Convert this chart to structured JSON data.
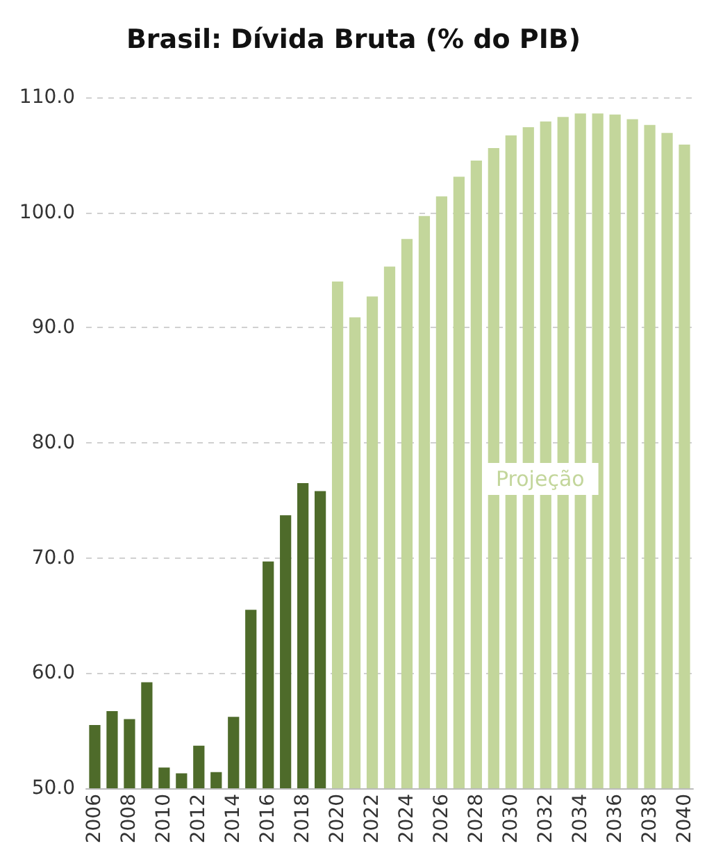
{
  "chart_data": {
    "type": "bar",
    "title": "Brasil: Dívida Bruta (% do PIB)",
    "categories": [
      "2006",
      null,
      "2008",
      null,
      "2010",
      null,
      "2012",
      null,
      "2014",
      null,
      "2016",
      null,
      "2018",
      null,
      "2020",
      null,
      "2022",
      null,
      "2024",
      null,
      "2026",
      null,
      "2028",
      null,
      "2030",
      null,
      "2032",
      null,
      "2034",
      null,
      "2036",
      null,
      "2038",
      null,
      "2040"
    ],
    "values": [
      55.5,
      56.7,
      56.0,
      59.2,
      51.8,
      51.3,
      53.7,
      51.4,
      56.2,
      65.5,
      69.7,
      73.7,
      76.5,
      75.8,
      94.0,
      90.9,
      92.7,
      95.3,
      97.7,
      99.7,
      101.4,
      103.1,
      104.5,
      105.6,
      106.7,
      107.4,
      107.9,
      108.3,
      108.6,
      108.6,
      108.5,
      108.1,
      107.6,
      106.9,
      105.9
    ],
    "colors": [
      "#4e6b2a",
      "#4e6b2a",
      "#4e6b2a",
      "#4e6b2a",
      "#4e6b2a",
      "#4e6b2a",
      "#4e6b2a",
      "#4e6b2a",
      "#4e6b2a",
      "#4e6b2a",
      "#4e6b2a",
      "#4e6b2a",
      "#4e6b2a",
      "#4e6b2a",
      "#c3d69b",
      "#c3d69b",
      "#c3d69b",
      "#c3d69b",
      "#c3d69b",
      "#c3d69b",
      "#c3d69b",
      "#c3d69b",
      "#c3d69b",
      "#c3d69b",
      "#c3d69b",
      "#c3d69b",
      "#c3d69b",
      "#c3d69b",
      "#c3d69b",
      "#c3d69b",
      "#c3d69b",
      "#c3d69b",
      "#c3d69b",
      "#c3d69b",
      "#c3d69b"
    ],
    "ylim": [
      50,
      110
    ],
    "yticks": [
      {
        "value": 50,
        "label": "50.0"
      },
      {
        "value": 60,
        "label": "60.0"
      },
      {
        "value": 70,
        "label": "70.0"
      },
      {
        "value": 80,
        "label": "80.0"
      },
      {
        "value": 90,
        "label": "90.0"
      },
      {
        "value": 100,
        "label": "100.0"
      },
      {
        "value": 110,
        "label": "110.0"
      }
    ],
    "grid": "y",
    "annotations": [
      "Projeção"
    ]
  }
}
